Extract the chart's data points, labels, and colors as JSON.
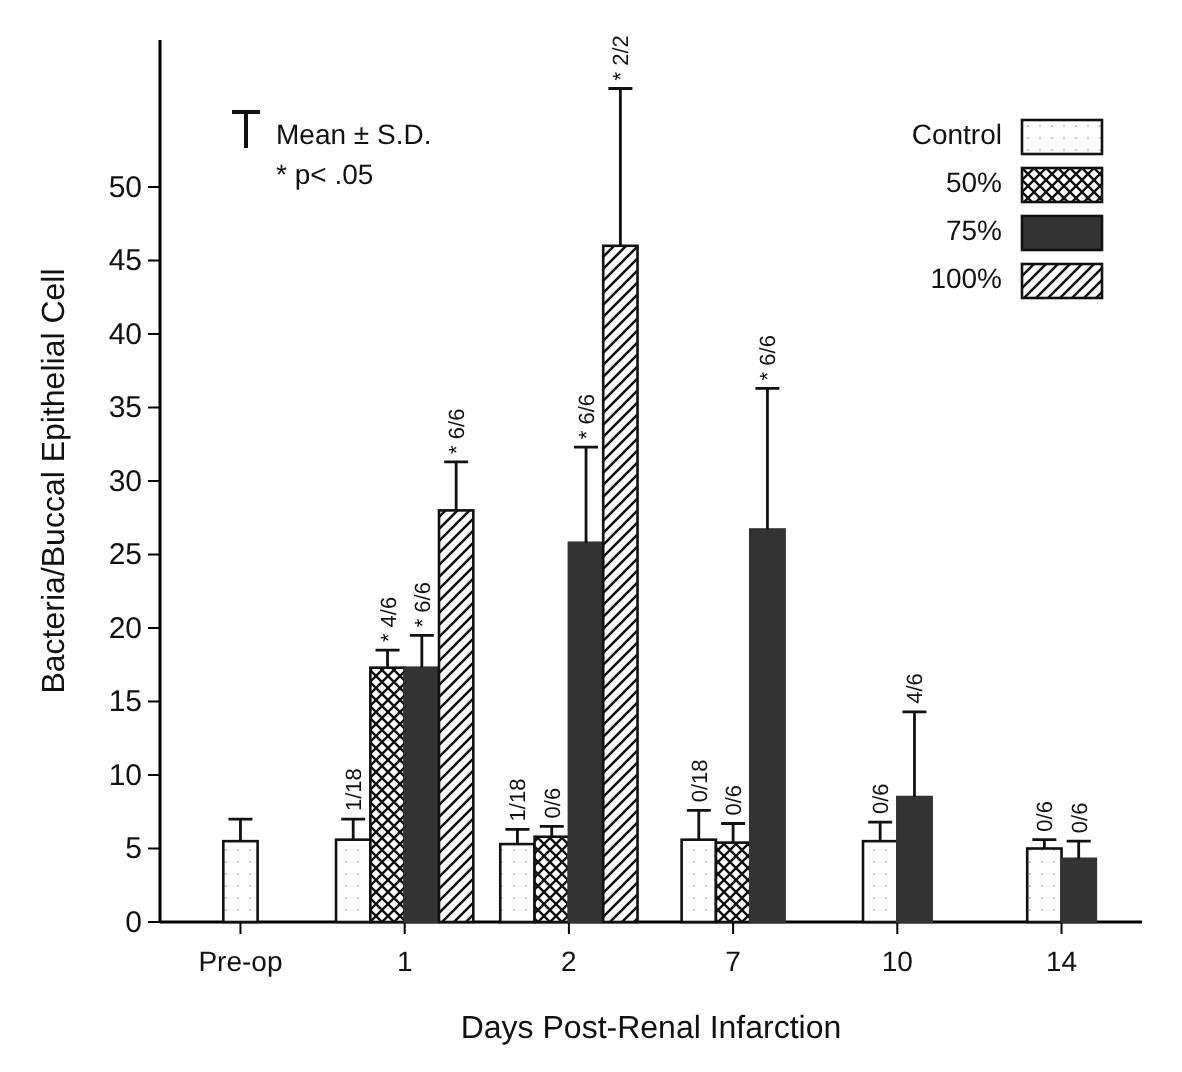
{
  "chart_data": {
    "type": "bar",
    "xlabel": "Days Post-Renal Infarction",
    "ylabel": "Bacteria/Buccal Epithelial Cell",
    "categories": [
      "Pre-op",
      "1",
      "2",
      "7",
      "10",
      "14"
    ],
    "series": [
      {
        "name": "Control",
        "color": "#111111",
        "values": [
          5.5,
          5.6,
          5.3,
          5.6,
          5.5,
          5.0
        ],
        "errors": [
          1.5,
          1.4,
          1.0,
          2.0,
          1.3,
          0.6
        ]
      },
      {
        "name": "50%",
        "color": "#111111",
        "values": [
          null,
          17.3,
          5.8,
          5.4,
          null,
          null
        ],
        "errors": [
          null,
          1.2,
          0.7,
          1.3,
          null,
          null
        ]
      },
      {
        "name": "75%",
        "color": "#333333",
        "values": [
          null,
          17.3,
          25.8,
          26.7,
          8.5,
          4.3
        ],
        "errors": [
          null,
          2.2,
          6.5,
          9.6,
          5.8,
          1.2
        ]
      },
      {
        "name": "100%",
        "color": "#111111",
        "values": [
          null,
          28,
          46,
          null,
          null,
          null
        ],
        "errors": [
          null,
          3.3,
          10.7,
          null,
          null,
          null
        ]
      }
    ],
    "ylim": [
      0,
      60
    ],
    "yticks": [
      0,
      5,
      10,
      15,
      20,
      25,
      30,
      35,
      40,
      45,
      50
    ],
    "legend": "top right",
    "annotations": [
      "Mean ± S.D.",
      "* p< .05",
      {
        "text": "1/18",
        "x": "1",
        "y": 7.0
      },
      {
        "text": "* 4/6",
        "x": "1",
        "y": 18.5
      },
      {
        "text": "* 6/6",
        "x": "1",
        "y": 19.5
      },
      "* 6/6",
      {
        "text": "1/18",
        "x": "2",
        "y": 6.3
      },
      {
        "text": "0/6",
        "x": "2",
        "y": 6.5
      },
      {
        "text": "* 6/6",
        "x": "2",
        "y": 32.3
      },
      "* 2/2",
      "0/18",
      {
        "text": "0/6",
        "x": "7",
        "y": 6.7
      },
      "* 6/6",
      {
        "text": "0/6",
        "x": "10",
        "y": 6.8
      },
      {
        "text": "4/6",
        "x": "10",
        "y": 14.3
      },
      {
        "text": "0/6",
        "x": "14",
        "y": 5.6
      },
      {
        "text": "0/6",
        "x": "14",
        "y": 5.5
      }
    ]
  }
}
